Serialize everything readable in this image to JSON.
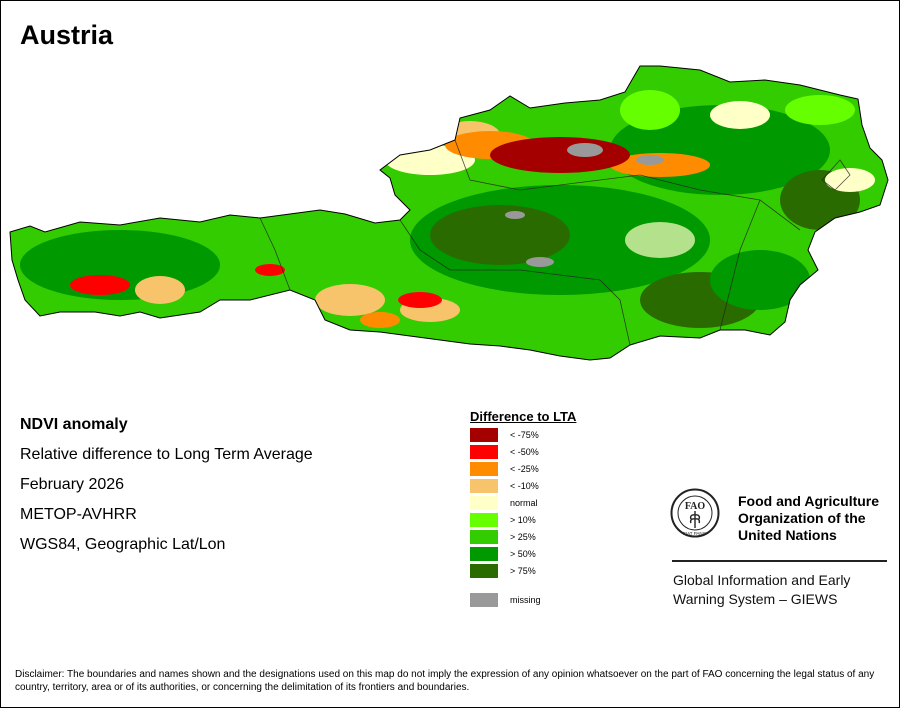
{
  "title": "Austria",
  "info": {
    "product": "NDVI anomaly",
    "description": "Relative difference to Long Term Average",
    "period": "February 2026",
    "sensor": "METOP-AVHRR",
    "projection": "WGS84, Geographic Lat/Lon"
  },
  "legend": {
    "title": "Difference to LTA",
    "items": [
      {
        "label": "< -75%",
        "color": "#a50000"
      },
      {
        "label": "< -50%",
        "color": "#ff0000"
      },
      {
        "label": "< -25%",
        "color": "#ff8c00"
      },
      {
        "label": "< -10%",
        "color": "#f7c46c"
      },
      {
        "label": "normal",
        "color": "#ffffc8"
      },
      {
        "label": "> 10%",
        "color": "#66ff00"
      },
      {
        "label": "> 25%",
        "color": "#33cc00"
      },
      {
        "label": "> 50%",
        "color": "#009900"
      },
      {
        "label": "> 75%",
        "color": "#2a6b00"
      }
    ],
    "missing": {
      "label": "missing",
      "color": "#999999"
    }
  },
  "org": {
    "line1": "Food and Agriculture",
    "line2": "Organization of the",
    "line3": "United Nations",
    "logo_text": "FAO",
    "logo_motto": "FIAT PANIS"
  },
  "giews": {
    "line1": "Global Information and Early",
    "line2": "Warning System – GIEWS"
  },
  "disclaimer": "Disclaimer: The boundaries and names shown and the designations used on this map do not imply the expression of any opinion whatsoever on the part of FAO concerning the legal status of any country, territory, area or of its authorities, or concerning the delimitation of its frontiers and boundaries."
}
